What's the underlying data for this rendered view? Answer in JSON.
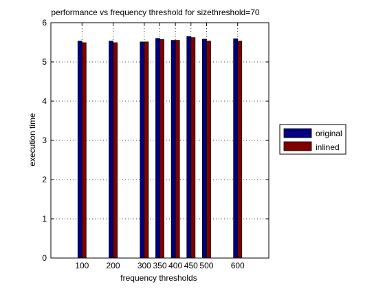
{
  "chart_data": {
    "type": "bar",
    "title": "performance vs frequency threshold for sizethreshold=70",
    "xlabel": "frequency thresholds",
    "ylabel": "execution time",
    "x": [
      100,
      200,
      300,
      350,
      400,
      450,
      500,
      600
    ],
    "xlim": [
      0,
      700
    ],
    "ylim": [
      0,
      6
    ],
    "yticks": [
      0,
      1,
      2,
      3,
      4,
      5,
      6
    ],
    "grid": true,
    "legend_position": "right",
    "series": [
      {
        "name": "original",
        "color": "#000080",
        "values": [
          5.53,
          5.53,
          5.51,
          5.6,
          5.55,
          5.65,
          5.58,
          5.59
        ]
      },
      {
        "name": "inlined",
        "color": "#800000",
        "values": [
          5.49,
          5.49,
          5.51,
          5.57,
          5.55,
          5.62,
          5.53,
          5.53
        ]
      }
    ]
  }
}
